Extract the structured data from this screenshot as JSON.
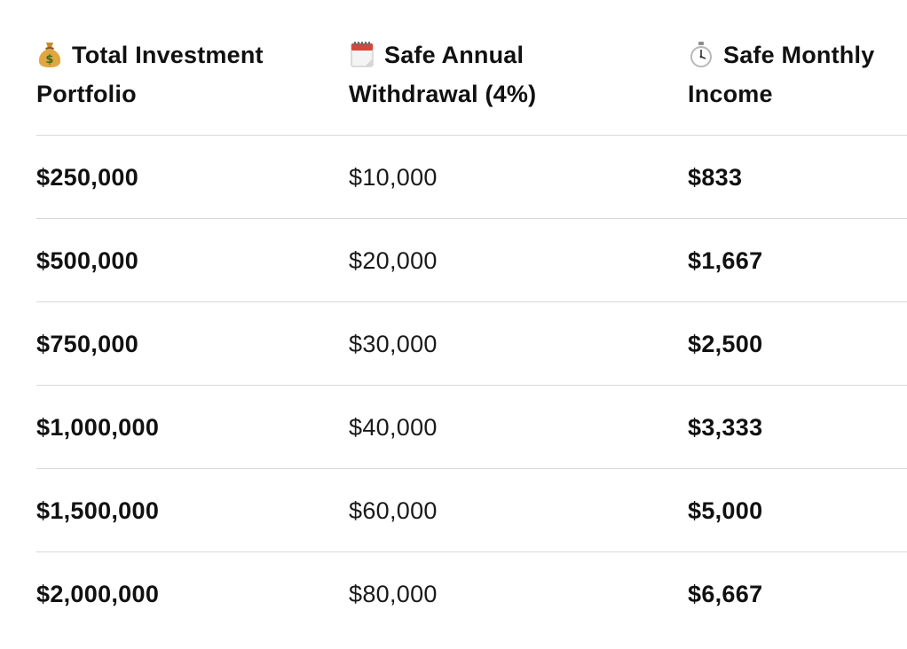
{
  "table": {
    "headers": [
      {
        "icon": "money-bag-icon",
        "line1": "Total Investment",
        "line2": "Portfolio"
      },
      {
        "icon": "calendar-icon",
        "line1": "Safe Annual",
        "line2": "Withdrawal (4%)"
      },
      {
        "icon": "stopwatch-icon",
        "line1": "Safe Monthly",
        "line2": "Income"
      }
    ],
    "rows": [
      {
        "portfolio": "$250,000",
        "annual": "$10,000",
        "monthly": "$833"
      },
      {
        "portfolio": "$500,000",
        "annual": "$20,000",
        "monthly": "$1,667"
      },
      {
        "portfolio": "$750,000",
        "annual": "$30,000",
        "monthly": "$2,500"
      },
      {
        "portfolio": "$1,000,000",
        "annual": "$40,000",
        "monthly": "$3,333"
      },
      {
        "portfolio": "$1,500,000",
        "annual": "$60,000",
        "monthly": "$5,000"
      },
      {
        "portfolio": "$2,000,000",
        "annual": "$80,000",
        "monthly": "$6,667"
      }
    ]
  }
}
